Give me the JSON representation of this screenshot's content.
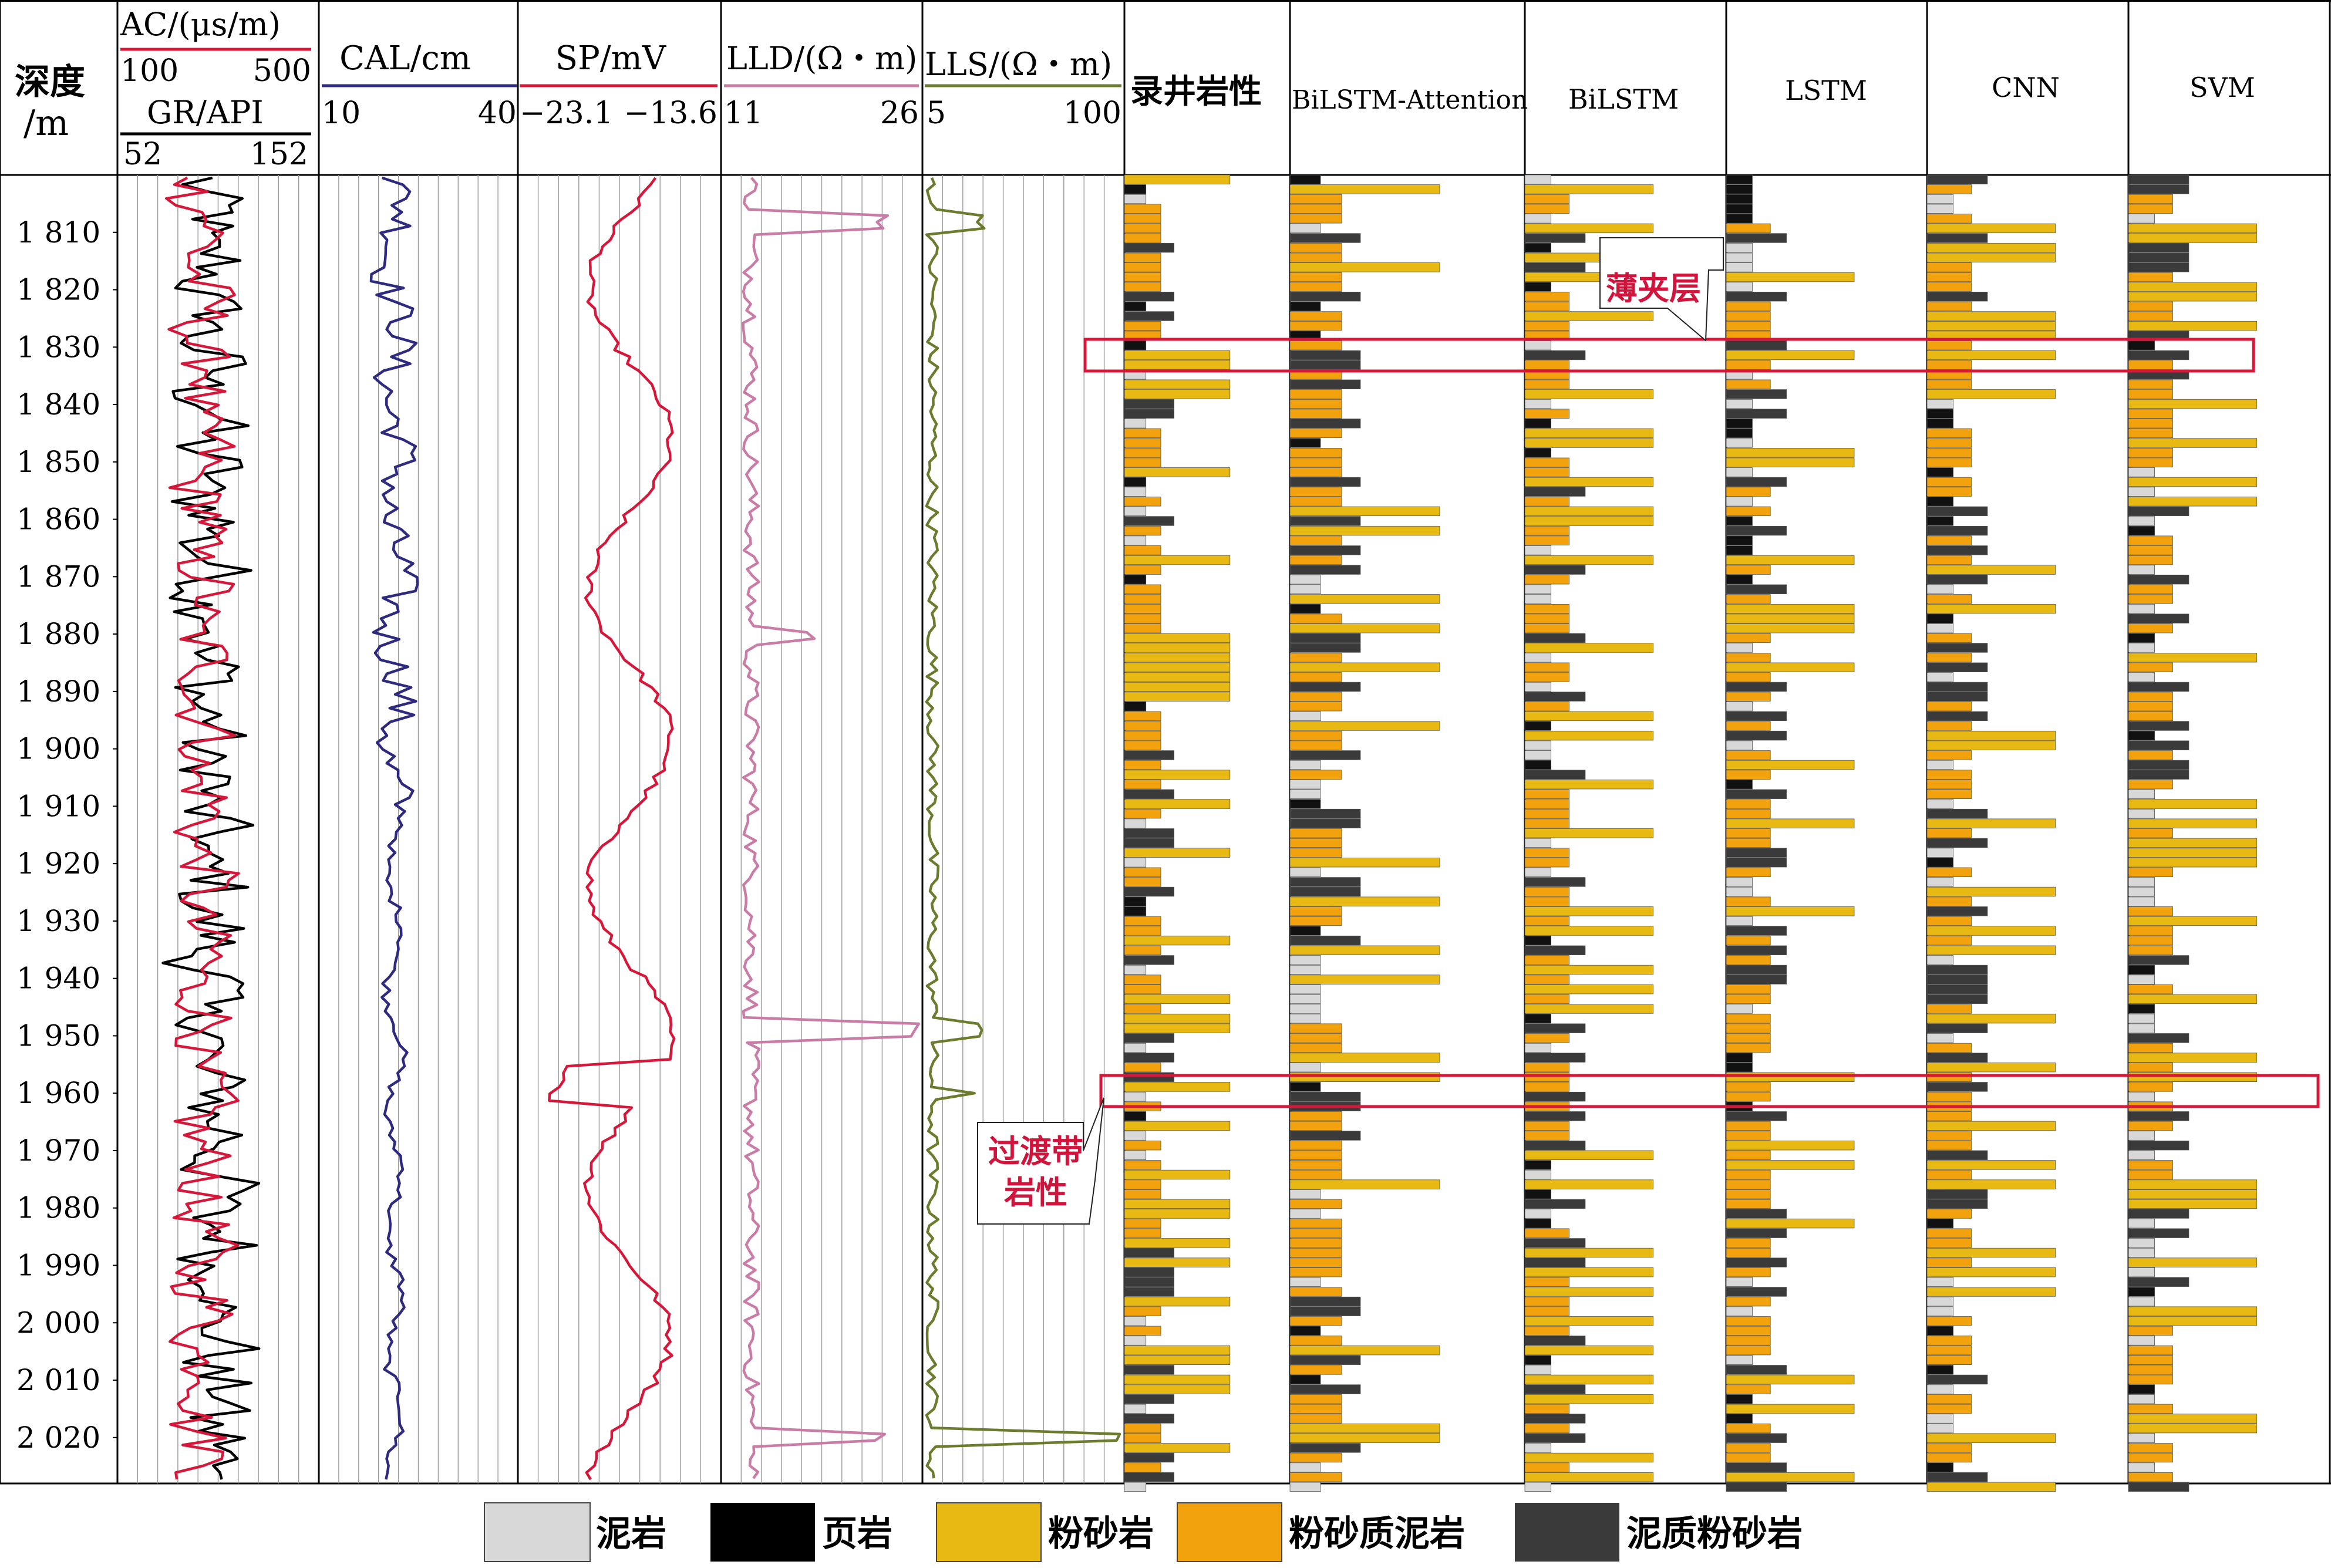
{
  "chart_data": {
    "type": "well-log",
    "depth_axis": {
      "label_top": "深度",
      "label_bottom": "/m",
      "ticks": [
        "1 810",
        "1 820",
        "1 830",
        "1 840",
        "1 850",
        "1 860",
        "1 870",
        "1 880",
        "1 890",
        "1 900",
        "1 910",
        "1 920",
        "1 930",
        "1 940",
        "1 950",
        "1 960",
        "1 970",
        "1 980",
        "1 990",
        "2 000",
        "2 010",
        "2 020"
      ],
      "tick_values": [
        1810,
        1820,
        1830,
        1840,
        1850,
        1860,
        1870,
        1880,
        1890,
        1900,
        1910,
        1920,
        1930,
        1940,
        1950,
        1960,
        1970,
        1980,
        1990,
        2000,
        2010,
        2020
      ],
      "range": [
        1800,
        2028
      ]
    },
    "tracks": {
      "ac_gr": {
        "ac_label": "AC/(μs/m)",
        "ac_min": "100",
        "ac_max": "500",
        "ac_color": "#d6173a",
        "gr_label": "GR/API",
        "gr_min": "52",
        "gr_max": "152",
        "gr_color": "#000000"
      },
      "cal": {
        "label": "CAL/cm",
        "min": "10",
        "max": "40",
        "color": "#2e2a80"
      },
      "sp": {
        "label": "SP/mV",
        "min": "−23.1",
        "max": "−13.6",
        "color": "#d6173a"
      },
      "lld": {
        "label": "LLD/(Ω・m)",
        "min": "11",
        "max": "26",
        "color": "#c87ca6"
      },
      "lls": {
        "label": "LLS/(Ω・m)",
        "min": "5",
        "max": "100",
        "color": "#6b7c2e"
      }
    },
    "lithology_columns": [
      "录井岩性",
      "BiLSTM-Attention",
      "BiLSTM",
      "LSTM",
      "CNN",
      "SVM"
    ],
    "lithology_codes": {
      "0": "泥岩",
      "1": "页岩",
      "2": "粉砂岩",
      "3": "粉砂质泥岩",
      "4": "泥质粉砂岩"
    },
    "legend": [
      {
        "label": "泥岩",
        "color": "#d8d8d8",
        "icon": "mudstone-swatch"
      },
      {
        "label": "页岩",
        "color": "#000000",
        "icon": "shale-swatch"
      },
      {
        "label": "粉砂岩",
        "color": "#e9b913",
        "icon": "siltstone-swatch"
      },
      {
        "label": "粉砂质泥岩",
        "color": "#f2a20c",
        "icon": "silty-mudstone-swatch"
      },
      {
        "label": "泥质粉砂岩",
        "color": "#3a3a3a",
        "icon": "muddy-siltstone-swatch"
      }
    ],
    "annotations": [
      {
        "text": "薄夹层",
        "depth_range": [
          1828,
          1834
        ]
      },
      {
        "text": "过渡带",
        "text2": "岩性",
        "depth_range": [
          1958,
          1963
        ]
      }
    ]
  }
}
